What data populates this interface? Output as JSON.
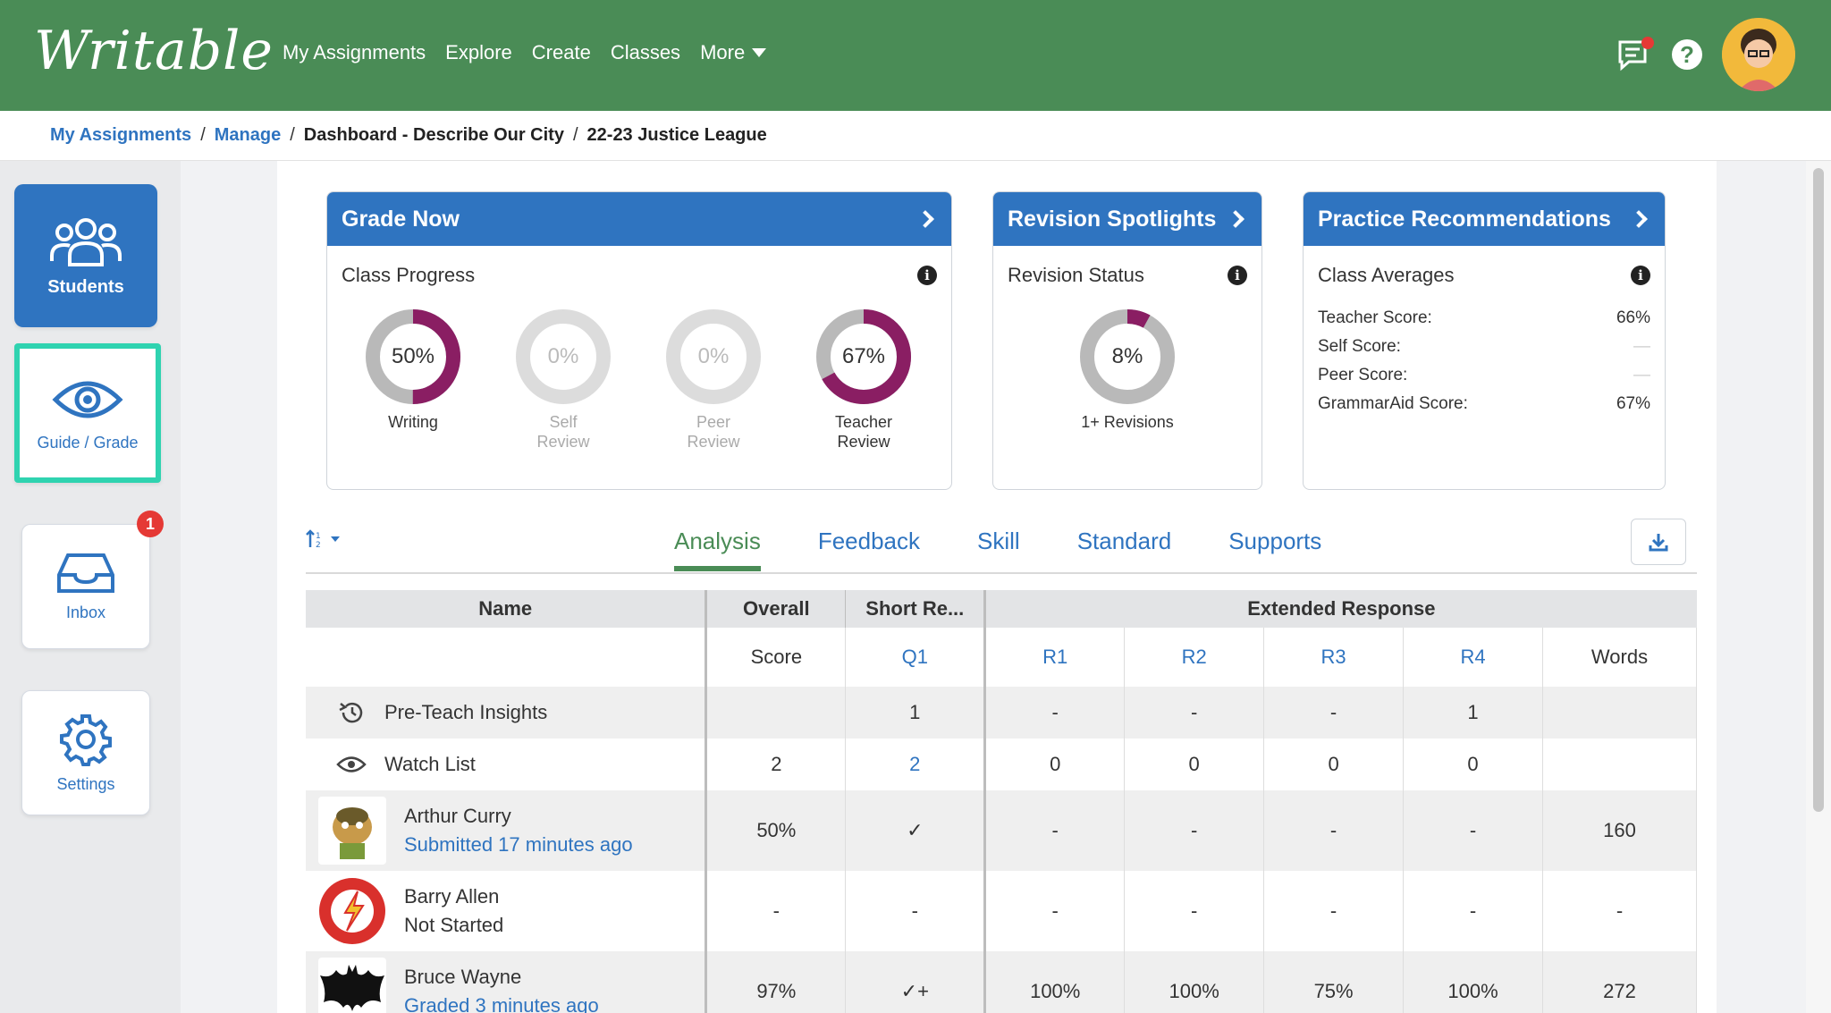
{
  "app": {
    "logo": "Writable"
  },
  "nav": {
    "items": [
      "My Assignments",
      "Explore",
      "Create",
      "Classes"
    ],
    "more_label": "More"
  },
  "breadcrumb": {
    "items": [
      "My Assignments",
      "Manage",
      "Dashboard - Describe Our City",
      "22-23 Justice League"
    ],
    "separator": "/"
  },
  "sidebar": {
    "students": "Students",
    "guide": "Guide / Grade",
    "inbox": "Inbox",
    "inbox_badge": "1",
    "settings": "Settings"
  },
  "grade_now": {
    "title": "Grade Now",
    "subtitle": "Class Progress",
    "donuts": [
      {
        "value": 50,
        "label": "50%",
        "cap1": "Writing",
        "cap2": "",
        "dim": false
      },
      {
        "value": 0,
        "label": "0%",
        "cap1": "Self",
        "cap2": "Review",
        "dim": true
      },
      {
        "value": 0,
        "label": "0%",
        "cap1": "Peer",
        "cap2": "Review",
        "dim": true
      },
      {
        "value": 67,
        "label": "67%",
        "cap1": "Teacher",
        "cap2": "Review",
        "dim": false
      }
    ]
  },
  "revision": {
    "title": "Revision Spotlights",
    "subtitle": "Revision Status",
    "donut": {
      "value": 8,
      "label": "8%",
      "caption": "1+ Revisions"
    }
  },
  "practice": {
    "title": "Practice Recommendations",
    "subtitle": "Class Averages",
    "rows": [
      {
        "label": "Teacher Score:",
        "value": "66%"
      },
      {
        "label": "Self Score:",
        "value": "—"
      },
      {
        "label": "Peer Score:",
        "value": "—"
      },
      {
        "label": "GrammarAid Score:",
        "value": "67%"
      }
    ]
  },
  "tabs": [
    "Analysis",
    "Feedback",
    "Skill",
    "Standard",
    "Supports"
  ],
  "table": {
    "headers": {
      "name": "Name",
      "overall": "Overall",
      "short": "Short Re...",
      "extended": "Extended Response"
    },
    "subheaders": [
      "Score",
      "Q1",
      "R1",
      "R2",
      "R3",
      "R4",
      "Words"
    ],
    "rows": [
      {
        "name": "Pre-Teach Insights",
        "cells": [
          "",
          "1",
          "-",
          "-",
          "-",
          "1",
          ""
        ]
      },
      {
        "name": "Watch List",
        "cells": [
          "2",
          "2",
          "0",
          "0",
          "0",
          "0",
          ""
        ]
      }
    ],
    "students": [
      {
        "name": "Arthur Curry",
        "status": "Submitted 17 minutes ago",
        "cells": [
          "50%",
          "✓",
          "-",
          "-",
          "-",
          "-",
          "160"
        ]
      },
      {
        "name": "Barry Allen",
        "status": "Not Started",
        "cells": [
          "-",
          "-",
          "-",
          "-",
          "-",
          "-",
          "-"
        ]
      },
      {
        "name": "Bruce Wayne",
        "status": "Graded 3 minutes ago",
        "cells": [
          "97%",
          "✓+",
          "100%",
          "100%",
          "75%",
          "100%",
          "272"
        ]
      }
    ]
  },
  "colors": {
    "nav_green": "#4a8c56",
    "accent_blue": "#2f74c0",
    "donut_purple": "#8a1e63",
    "highlight_teal": "#2fd3b0"
  }
}
